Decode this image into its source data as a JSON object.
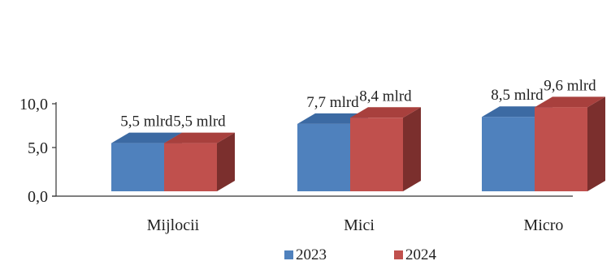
{
  "chart_data": {
    "type": "bar",
    "categories": [
      "Mijlocii",
      "Mici",
      "Micro"
    ],
    "series": [
      {
        "name": "2023",
        "values": [
          5.5,
          7.7,
          8.5
        ],
        "labels": [
          "5,5 mlrd",
          "7,7 mlrd",
          "8,5 mlrd"
        ],
        "color": "#4f81bd",
        "top_color": "#3c6aa3",
        "side_color": "#385d8a"
      },
      {
        "name": "2024",
        "values": [
          5.5,
          8.4,
          9.6
        ],
        "labels": [
          "5,5 mlrd",
          "8,4 mlrd",
          "9,6 mlrd"
        ],
        "color": "#c0504d",
        "top_color": "#a8403d",
        "side_color": "#7b2f2d"
      }
    ],
    "yticks": [
      "0,0",
      "5,0",
      "10,0"
    ],
    "ytick_values": [
      0,
      5,
      10
    ],
    "ylim": [
      0,
      10
    ],
    "legend_position": "bottom",
    "grid": false,
    "style": "3d-clustered-column"
  }
}
